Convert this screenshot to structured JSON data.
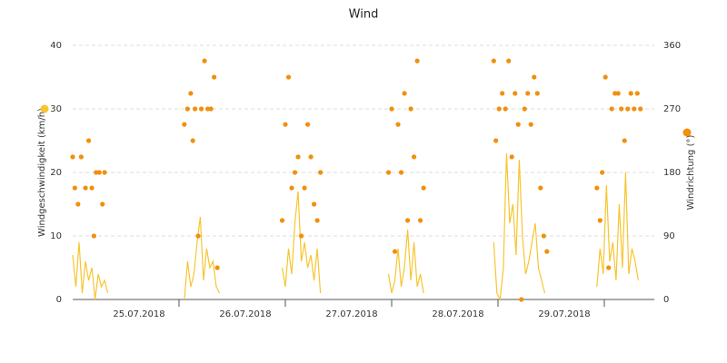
{
  "chart_data": {
    "type": "line_scatter",
    "title": "Wind",
    "y_label": "Windgeschwindigkeit (km/h)",
    "y2_label": "Windrichtung (°)",
    "xlim": [
      0,
      5.47
    ],
    "ylim": [
      0,
      40
    ],
    "yticks": [
      0,
      10,
      20,
      30,
      40
    ],
    "y2lim": [
      0,
      360
    ],
    "y2ticks": [
      0,
      90,
      180,
      270,
      360
    ],
    "xticks": [
      {
        "value": 1,
        "label": "25.07.2018"
      },
      {
        "value": 2,
        "label": "26.07.2018"
      },
      {
        "value": 3,
        "label": "27.07.2018"
      },
      {
        "value": 4,
        "label": "28.07.2018"
      },
      {
        "value": 5,
        "label": "29.07.2018"
      }
    ],
    "grid": true,
    "series": [
      {
        "type": "line",
        "color": "#f7c531",
        "x": [
          0.0,
          0.03,
          0.06,
          0.09,
          0.12,
          0.15,
          0.18,
          0.21,
          0.24,
          0.27,
          0.3,
          0.33,
          0.6,
          1.05,
          1.08,
          1.11,
          1.14,
          1.17,
          1.2,
          1.23,
          1.26,
          1.29,
          1.32,
          1.35,
          1.38,
          1.6,
          1.97,
          2.0,
          2.03,
          2.06,
          2.09,
          2.12,
          2.15,
          2.18,
          2.21,
          2.24,
          2.27,
          2.3,
          2.33,
          2.6,
          2.97,
          3.0,
          3.03,
          3.06,
          3.09,
          3.12,
          3.15,
          3.18,
          3.21,
          3.24,
          3.27,
          3.3,
          3.6,
          3.96,
          3.99,
          4.02,
          4.05,
          4.08,
          4.11,
          4.14,
          4.17,
          4.2,
          4.23,
          4.26,
          4.29,
          4.32,
          4.35,
          4.38,
          4.41,
          4.44,
          4.7,
          4.93,
          4.96,
          4.99,
          5.02,
          5.05,
          5.08,
          5.11,
          5.14,
          5.17,
          5.2,
          5.23,
          5.26,
          5.29,
          5.32
        ],
        "values": [
          7,
          2,
          9,
          1,
          6,
          3,
          5,
          0,
          4,
          2,
          3,
          1,
          null,
          0,
          6,
          2,
          4,
          9,
          13,
          3,
          8,
          5,
          6,
          2,
          1,
          null,
          5,
          2,
          8,
          4,
          12,
          17,
          6,
          9,
          5,
          7,
          3,
          8,
          1,
          null,
          4,
          1,
          3,
          8,
          2,
          5,
          11,
          3,
          9,
          2,
          4,
          1,
          null,
          9,
          1,
          0,
          5,
          23,
          12,
          15,
          7,
          22,
          10,
          4,
          6,
          9,
          12,
          5,
          3,
          1,
          null,
          2,
          8,
          4,
          18,
          6,
          9,
          3,
          15,
          5,
          20,
          4,
          8,
          6,
          3
        ]
      },
      {
        "type": "scatter",
        "axis": "y2",
        "color": "#f28f0c",
        "x": [
          0.0,
          0.02,
          0.05,
          0.08,
          0.12,
          0.15,
          0.18,
          0.2,
          0.22,
          0.25,
          0.28,
          0.3,
          1.05,
          1.08,
          1.11,
          1.13,
          1.15,
          1.18,
          1.21,
          1.24,
          1.27,
          1.3,
          1.33,
          1.36,
          1.97,
          2.0,
          2.03,
          2.06,
          2.09,
          2.12,
          2.15,
          2.18,
          2.21,
          2.24,
          2.27,
          2.3,
          2.33,
          2.97,
          3.0,
          3.03,
          3.06,
          3.09,
          3.12,
          3.15,
          3.18,
          3.21,
          3.24,
          3.27,
          3.3,
          3.96,
          3.98,
          4.01,
          4.04,
          4.07,
          4.1,
          4.13,
          4.16,
          4.19,
          4.22,
          4.25,
          4.28,
          4.31,
          4.34,
          4.37,
          4.4,
          4.43,
          4.46,
          4.93,
          4.96,
          4.98,
          5.01,
          5.04,
          5.07,
          5.1,
          5.13,
          5.16,
          5.19,
          5.22,
          5.25,
          5.28,
          5.31,
          5.34
        ],
        "values": [
          202,
          158,
          135,
          202,
          158,
          225,
          158,
          90,
          180,
          180,
          135,
          180,
          248,
          270,
          292,
          225,
          270,
          90,
          270,
          338,
          270,
          270,
          315,
          45,
          112,
          248,
          315,
          158,
          180,
          202,
          90,
          158,
          248,
          202,
          135,
          112,
          180,
          180,
          270,
          68,
          248,
          180,
          292,
          112,
          270,
          202,
          338,
          112,
          158,
          338,
          225,
          270,
          292,
          270,
          338,
          202,
          292,
          248,
          0,
          270,
          292,
          248,
          315,
          292,
          158,
          90,
          68,
          158,
          112,
          180,
          315,
          45,
          270,
          292,
          292,
          270,
          225,
          270,
          292,
          270,
          292,
          270
        ]
      }
    ]
  }
}
